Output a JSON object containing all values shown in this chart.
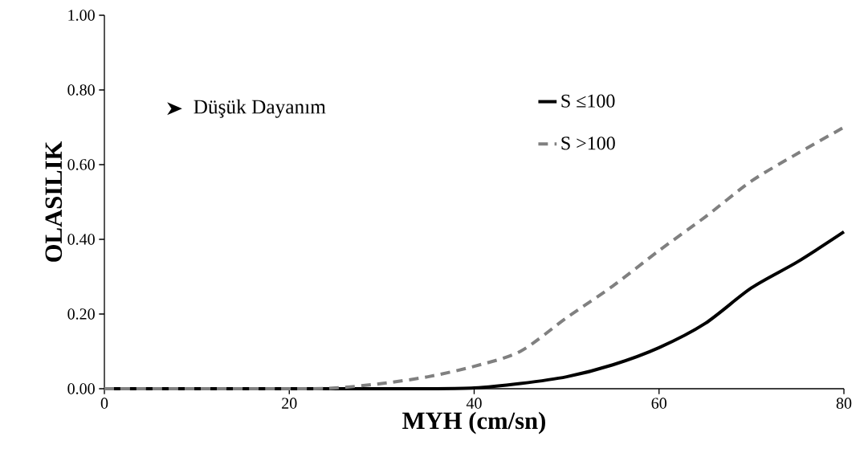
{
  "chart_data": {
    "type": "line",
    "xlabel": "MYH (cm/sn)",
    "ylabel": "OLASILIK",
    "annotations": [
      "Düşük Dayanım"
    ],
    "x": [
      0,
      20,
      25,
      30,
      35,
      40,
      45,
      50,
      55,
      60,
      65,
      70,
      75,
      80
    ],
    "series": [
      {
        "name": "S ≤100",
        "color": "#000000",
        "line_style": "solid",
        "values": [
          0,
          0,
          0,
          0,
          0,
          0.002,
          0.014,
          0.032,
          0.064,
          0.11,
          0.175,
          0.27,
          0.34,
          0.42
        ]
      },
      {
        "name": "S >100",
        "color": "#808080",
        "line_style": "dashed",
        "values": [
          0,
          0,
          0.002,
          0.014,
          0.032,
          0.06,
          0.1,
          0.19,
          0.275,
          0.37,
          0.46,
          0.556,
          0.63,
          0.7
        ]
      }
    ],
    "xlim": [
      0,
      80
    ],
    "ylim": [
      0,
      1
    ],
    "xticks": [
      0,
      20,
      40,
      60,
      80
    ],
    "yticks": [
      {
        "value": 0,
        "label": "0.00"
      },
      {
        "value": 0.2,
        "label": "0.20"
      },
      {
        "value": 0.4,
        "label": "0.40"
      },
      {
        "value": 0.6,
        "label": "0.60"
      },
      {
        "value": 0.8,
        "label": "0.80"
      },
      {
        "value": 1,
        "label": "1.00"
      }
    ],
    "grid": false,
    "legend": "top right",
    "marker": "none"
  }
}
